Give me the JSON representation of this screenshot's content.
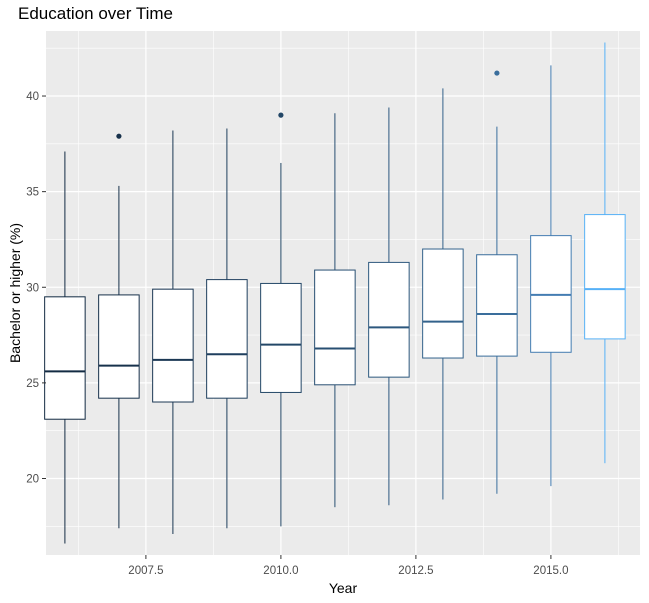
{
  "chart_data": {
    "type": "boxplot",
    "title": "Education over Time",
    "xlabel": "Year",
    "ylabel": "Bachelor or higher (%)",
    "xlim": [
      2005.65,
      2016.65
    ],
    "ylim": [
      16.0,
      43.4
    ],
    "xticks": [
      2007.5,
      2010.0,
      2012.5,
      2015.0
    ],
    "xtick_labels": [
      "2007.5",
      "2010.0",
      "2012.5",
      "2015.0"
    ],
    "yticks": [
      20,
      25,
      30,
      35,
      40
    ],
    "ytick_labels": [
      "20",
      "25",
      "30",
      "35",
      "40"
    ],
    "grid": true,
    "boxes": [
      {
        "x": 2006,
        "min": 16.6,
        "q1": 23.1,
        "median": 25.6,
        "q3": 29.5,
        "max": 37.1,
        "outliers": [],
        "color": "#132B43"
      },
      {
        "x": 2007,
        "min": 17.4,
        "q1": 24.2,
        "median": 25.9,
        "q3": 29.6,
        "max": 35.3,
        "outliers": [
          37.9
        ],
        "color": "#17314B"
      },
      {
        "x": 2008,
        "min": 17.1,
        "q1": 24.0,
        "median": 26.2,
        "q3": 29.9,
        "max": 38.2,
        "outliers": [],
        "color": "#1B3854"
      },
      {
        "x": 2009,
        "min": 17.4,
        "q1": 24.2,
        "median": 26.5,
        "q3": 30.4,
        "max": 38.3,
        "outliers": [],
        "color": "#1F3F5E"
      },
      {
        "x": 2010,
        "min": 17.5,
        "q1": 24.5,
        "median": 27.0,
        "q3": 30.2,
        "max": 36.5,
        "outliers": [
          39.0
        ],
        "color": "#234767"
      },
      {
        "x": 2011,
        "min": 18.5,
        "q1": 24.9,
        "median": 26.8,
        "q3": 30.9,
        "max": 39.1,
        "outliers": [],
        "color": "#284F72"
      },
      {
        "x": 2012,
        "min": 18.6,
        "q1": 25.3,
        "median": 27.9,
        "q3": 31.3,
        "max": 39.4,
        "outliers": [],
        "color": "#2D587E"
      },
      {
        "x": 2013,
        "min": 18.9,
        "q1": 26.3,
        "median": 28.2,
        "q3": 32.0,
        "max": 40.4,
        "outliers": [],
        "color": "#33628B"
      },
      {
        "x": 2014,
        "min": 19.2,
        "q1": 26.4,
        "median": 28.6,
        "q3": 31.7,
        "max": 38.4,
        "outliers": [
          41.2
        ],
        "color": "#3A6E9C"
      },
      {
        "x": 2015,
        "min": 19.6,
        "q1": 26.6,
        "median": 29.6,
        "q3": 32.7,
        "max": 41.6,
        "outliers": [],
        "color": "#447DB2"
      },
      {
        "x": 2016,
        "min": 20.8,
        "q1": 27.3,
        "median": 29.9,
        "q3": 33.8,
        "max": 42.8,
        "outliers": [],
        "color": "#56B1F7"
      }
    ],
    "colors": {
      "panel_background": "#EBEBEB",
      "grid_major": "#FFFFFF",
      "box_fill": "#FFFFFF"
    }
  }
}
